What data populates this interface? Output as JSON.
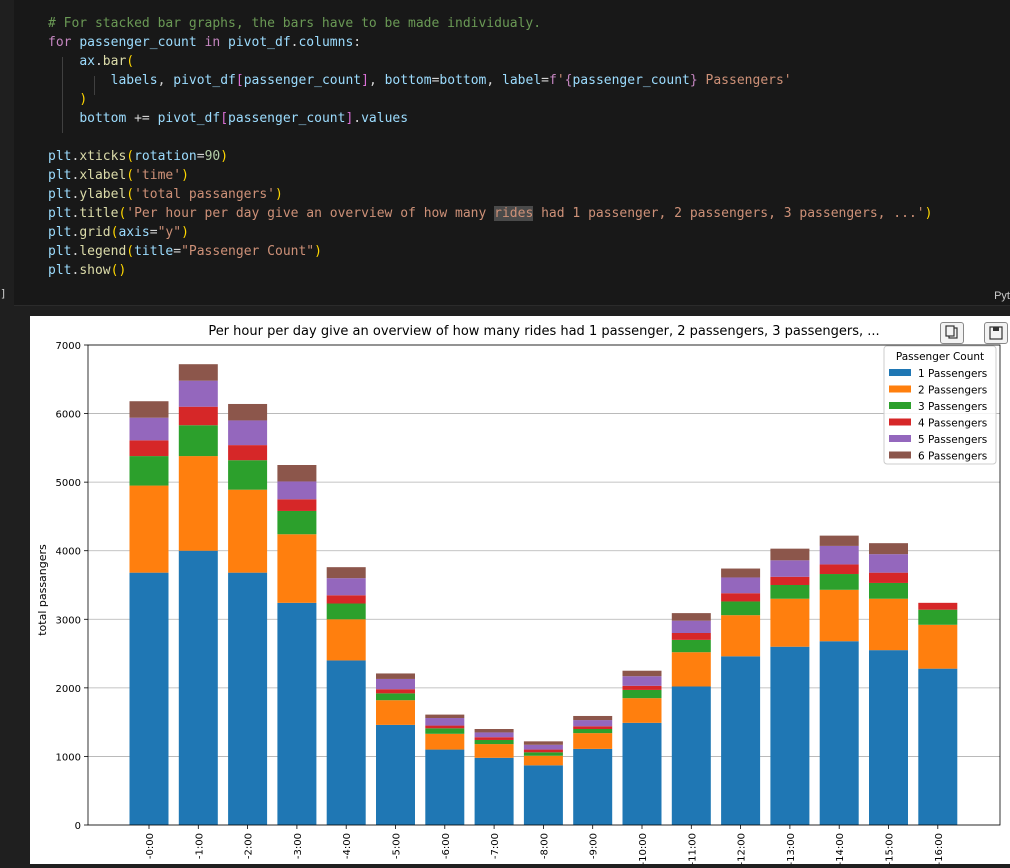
{
  "code": {
    "lines": [
      [
        {
          "c": "c",
          "t": "# For stacked bar graphs, the bars have to be made individualy."
        }
      ],
      [
        {
          "c": "k",
          "t": "for"
        },
        {
          "c": "o",
          "t": " "
        },
        {
          "c": "v",
          "t": "passenger_count"
        },
        {
          "c": "o",
          "t": " "
        },
        {
          "c": "k",
          "t": "in"
        },
        {
          "c": "o",
          "t": " "
        },
        {
          "c": "v",
          "t": "pivot_df"
        },
        {
          "c": "o",
          "t": "."
        },
        {
          "c": "v",
          "t": "columns"
        },
        {
          "c": "o",
          "t": ":"
        }
      ],
      [
        {
          "c": "o",
          "t": "    "
        },
        {
          "c": "v",
          "t": "ax"
        },
        {
          "c": "o",
          "t": "."
        },
        {
          "c": "f",
          "t": "bar"
        },
        {
          "c": "p",
          "t": "("
        }
      ],
      [
        {
          "c": "o",
          "t": "        "
        },
        {
          "c": "v",
          "t": "labels"
        },
        {
          "c": "o",
          "t": ", "
        },
        {
          "c": "v",
          "t": "pivot_df"
        },
        {
          "c": "pp",
          "t": "["
        },
        {
          "c": "v",
          "t": "passenger_count"
        },
        {
          "c": "pp",
          "t": "]"
        },
        {
          "c": "o",
          "t": ", "
        },
        {
          "c": "v",
          "t": "bottom"
        },
        {
          "c": "o",
          "t": "="
        },
        {
          "c": "v",
          "t": "bottom"
        },
        {
          "c": "o",
          "t": ", "
        },
        {
          "c": "v",
          "t": "label"
        },
        {
          "c": "o",
          "t": "="
        },
        {
          "c": "k",
          "t": "f"
        },
        {
          "c": "s",
          "t": "'"
        },
        {
          "c": "k",
          "t": "{"
        },
        {
          "c": "v",
          "t": "passenger_count"
        },
        {
          "c": "k",
          "t": "}"
        },
        {
          "c": "s",
          "t": " Passengers'"
        }
      ],
      [
        {
          "c": "o",
          "t": "    "
        },
        {
          "c": "p",
          "t": ")"
        }
      ],
      [
        {
          "c": "o",
          "t": "    "
        },
        {
          "c": "v",
          "t": "bottom"
        },
        {
          "c": "o",
          "t": " += "
        },
        {
          "c": "v",
          "t": "pivot_df"
        },
        {
          "c": "pp",
          "t": "["
        },
        {
          "c": "v",
          "t": "passenger_count"
        },
        {
          "c": "pp",
          "t": "]"
        },
        {
          "c": "o",
          "t": "."
        },
        {
          "c": "v",
          "t": "values"
        }
      ],
      [],
      [
        {
          "c": "v",
          "t": "plt"
        },
        {
          "c": "o",
          "t": "."
        },
        {
          "c": "f",
          "t": "xticks"
        },
        {
          "c": "p",
          "t": "("
        },
        {
          "c": "v",
          "t": "rotation"
        },
        {
          "c": "o",
          "t": "="
        },
        {
          "c": "n",
          "t": "90"
        },
        {
          "c": "p",
          "t": ")"
        }
      ],
      [
        {
          "c": "v",
          "t": "plt"
        },
        {
          "c": "o",
          "t": "."
        },
        {
          "c": "f",
          "t": "xlabel"
        },
        {
          "c": "p",
          "t": "("
        },
        {
          "c": "s",
          "t": "'time'"
        },
        {
          "c": "p",
          "t": ")"
        }
      ],
      [
        {
          "c": "v",
          "t": "plt"
        },
        {
          "c": "o",
          "t": "."
        },
        {
          "c": "f",
          "t": "ylabel"
        },
        {
          "c": "p",
          "t": "("
        },
        {
          "c": "s",
          "t": "'total passangers'"
        },
        {
          "c": "p",
          "t": ")"
        }
      ],
      [
        {
          "c": "v",
          "t": "plt"
        },
        {
          "c": "o",
          "t": "."
        },
        {
          "c": "f",
          "t": "title"
        },
        {
          "c": "p",
          "t": "("
        },
        {
          "c": "s",
          "t": "'Per hour per day give an overview of how many "
        },
        {
          "c": "s hl",
          "t": "rides"
        },
        {
          "c": "s",
          "t": " had 1 passenger, 2 passengers, 3 passengers, ...'"
        },
        {
          "c": "p",
          "t": ")"
        }
      ],
      [
        {
          "c": "v",
          "t": "plt"
        },
        {
          "c": "o",
          "t": "."
        },
        {
          "c": "f",
          "t": "grid"
        },
        {
          "c": "p",
          "t": "("
        },
        {
          "c": "v",
          "t": "axis"
        },
        {
          "c": "o",
          "t": "="
        },
        {
          "c": "s",
          "t": "\"y\""
        },
        {
          "c": "p",
          "t": ")"
        }
      ],
      [
        {
          "c": "v",
          "t": "plt"
        },
        {
          "c": "o",
          "t": "."
        },
        {
          "c": "f",
          "t": "legend"
        },
        {
          "c": "p",
          "t": "("
        },
        {
          "c": "v",
          "t": "title"
        },
        {
          "c": "o",
          "t": "="
        },
        {
          "c": "s",
          "t": "\"Passenger Count\""
        },
        {
          "c": "p",
          "t": ")"
        }
      ],
      [
        {
          "c": "v",
          "t": "plt"
        },
        {
          "c": "o",
          "t": "."
        },
        {
          "c": "f",
          "t": "show"
        },
        {
          "c": "p",
          "t": "()"
        }
      ]
    ]
  },
  "cell_status_bracket": "]",
  "cell_language_label": "Pyt",
  "chart_data": {
    "type": "bar",
    "stacked": true,
    "title": "Per hour per day give an overview of how many rides had 1 passenger, 2 passengers, 3 passengers, ...",
    "ylabel": "total passangers",
    "xlabel": "time",
    "ylim": [
      0,
      7000
    ],
    "yticks": [
      0,
      1000,
      2000,
      3000,
      4000,
      5000,
      6000,
      7000
    ],
    "grid": "y",
    "legend_title": "Passenger Count",
    "legend_position": "top-right",
    "categories": [
      "0:00",
      "1:00",
      "2:00",
      "3:00",
      "4:00",
      "5:00",
      "6:00",
      "7:00",
      "8:00",
      "9:00",
      "10:00",
      "11:00",
      "12:00",
      "13:00",
      "14:00",
      "15:00",
      "16:00"
    ],
    "category_label_prefix": "-",
    "series": [
      {
        "name": "1 Passengers",
        "color": "#1f77b4",
        "values": [
          3680,
          4000,
          3680,
          3240,
          2400,
          1460,
          1100,
          980,
          870,
          1110,
          1490,
          2020,
          2460,
          2600,
          2680,
          2550,
          2280
        ]
      },
      {
        "name": "2 Passengers",
        "color": "#ff7f0e",
        "values": [
          1270,
          1380,
          1210,
          1000,
          600,
          360,
          230,
          200,
          140,
          230,
          360,
          500,
          600,
          700,
          750,
          750,
          640
        ]
      },
      {
        "name": "3 Passengers",
        "color": "#2ca02c",
        "values": [
          430,
          450,
          430,
          340,
          230,
          100,
          80,
          60,
          50,
          60,
          120,
          180,
          200,
          200,
          230,
          230,
          220
        ]
      },
      {
        "name": "4 Passengers",
        "color": "#d62728",
        "values": [
          230,
          270,
          220,
          170,
          120,
          60,
          40,
          40,
          40,
          40,
          60,
          100,
          120,
          120,
          140,
          150,
          100
        ]
      },
      {
        "name": "5 Passengers",
        "color": "#9467bd",
        "values": [
          330,
          380,
          360,
          260,
          250,
          150,
          110,
          70,
          70,
          90,
          140,
          180,
          230,
          240,
          270,
          270,
          0
        ]
      },
      {
        "name": "6 Passengers",
        "color": "#8c564b",
        "values": [
          240,
          240,
          240,
          240,
          160,
          80,
          50,
          50,
          50,
          60,
          80,
          110,
          130,
          170,
          150,
          160,
          0
        ]
      }
    ]
  }
}
